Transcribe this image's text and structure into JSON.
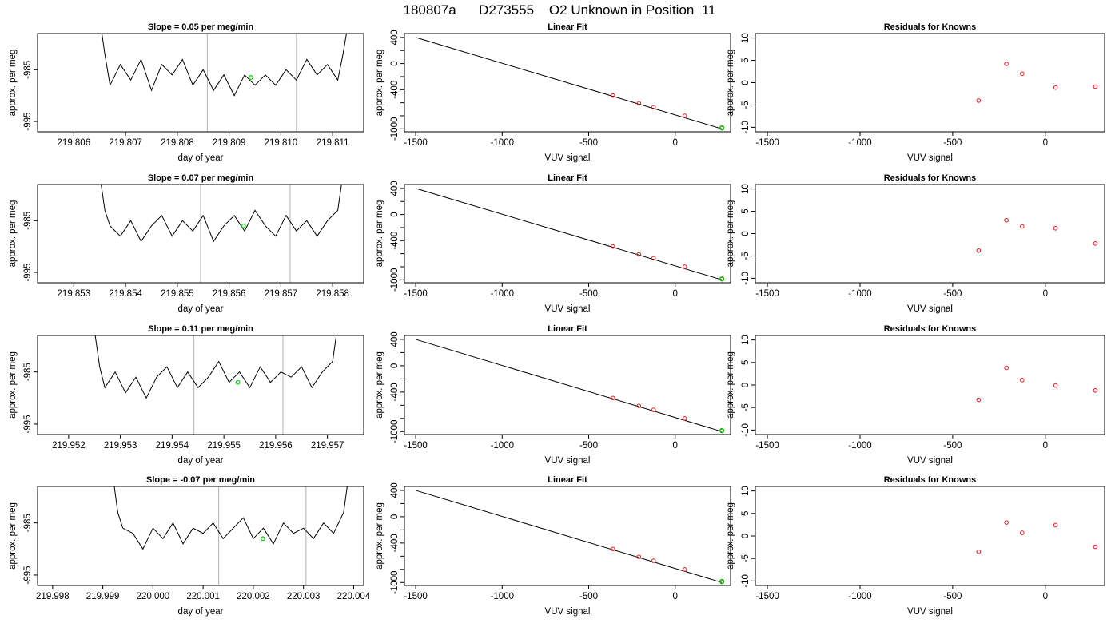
{
  "figure": {
    "title": "180807a      D273555    O2 Unknown in Position  11"
  },
  "common": {
    "ylabel": "approx. per meg",
    "time_xlabel": "day of year",
    "fit_xlabel": "VUV signal",
    "fit_title": "Linear Fit",
    "resid_title": "Residuals for Knowns",
    "colors": {
      "line": "#000000",
      "known_points": "#e41a1c",
      "unknown_point": "#00cc00",
      "vlines": "#bfbfbf"
    }
  },
  "chart_data": [
    {
      "type": "line",
      "panel": "time-series-1",
      "title": "Slope =  0.05  per meg/min",
      "xlabel": "day of year",
      "ylabel": "approx. per meg",
      "xlim": [
        219.8053,
        219.8116
      ],
      "ylim": [
        -997,
        -978
      ],
      "xticks": [
        "219.806",
        "219.807",
        "219.808",
        "219.809",
        "219.810",
        "219.811"
      ],
      "yticks": [
        "-985",
        "-995"
      ],
      "vlines": [
        219.80858,
        219.8103
      ],
      "series": [
        {
          "x": [
            219.8065,
            219.8066,
            219.8067,
            219.8069,
            219.8071,
            219.8073,
            219.8075,
            219.8077,
            219.8079,
            219.8081,
            219.8083,
            219.8085,
            219.8087,
            219.8089,
            219.8091,
            219.8093,
            219.8095,
            219.8097,
            219.8099,
            219.8101,
            219.8103,
            219.8105,
            219.8107,
            219.8109,
            219.8111,
            219.8112,
            219.8113
          ],
          "y": [
            -975,
            -982,
            -988,
            -984,
            -987,
            -983,
            -989,
            -984,
            -986,
            -983,
            -988,
            -985,
            -989,
            -986,
            -990,
            -986,
            -988,
            -986,
            -988,
            -985,
            -987,
            -983,
            -986,
            -984,
            -987,
            -982,
            -976
          ]
        }
      ],
      "unknown_marker": {
        "x": 219.80942,
        "y": -986.5
      }
    },
    {
      "type": "line",
      "panel": "time-series-2",
      "title": "Slope =  0.07  per meg/min",
      "xlabel": "day of year",
      "ylabel": "approx. per meg",
      "xlim": [
        219.8523,
        219.8586
      ],
      "ylim": [
        -997,
        -978
      ],
      "xticks": [
        "219.853",
        "219.854",
        "219.855",
        "219.856",
        "219.857",
        "219.858"
      ],
      "yticks": [
        "-985",
        "-995"
      ],
      "vlines": [
        219.85545,
        219.85718
      ],
      "series": [
        {
          "x": [
            219.8535,
            219.8536,
            219.8537,
            219.8539,
            219.8541,
            219.8543,
            219.8545,
            219.8547,
            219.8549,
            219.8551,
            219.8553,
            219.8555,
            219.8557,
            219.8559,
            219.8561,
            219.8563,
            219.8565,
            219.8567,
            219.8569,
            219.8571,
            219.8573,
            219.8575,
            219.8577,
            219.8579,
            219.8581,
            219.8582
          ],
          "y": [
            -976,
            -983,
            -986,
            -988,
            -985,
            -989,
            -986,
            -984,
            -988,
            -985,
            -987,
            -984,
            -989,
            -986,
            -984,
            -987,
            -983,
            -986,
            -988,
            -984,
            -987,
            -985,
            -988,
            -985,
            -983,
            -976
          ]
        }
      ],
      "unknown_marker": {
        "x": 219.85628,
        "y": -986.0
      }
    },
    {
      "type": "line",
      "panel": "time-series-3",
      "title": "Slope =  0.11  per meg/min",
      "xlabel": "day of year",
      "ylabel": "approx. per meg",
      "xlim": [
        219.9514,
        219.9577
      ],
      "ylim": [
        -997,
        -978
      ],
      "xticks": [
        "219.952",
        "219.953",
        "219.954",
        "219.955",
        "219.956",
        "219.957"
      ],
      "yticks": [
        "-985",
        "-995"
      ],
      "vlines": [
        219.95442,
        219.95614
      ],
      "series": [
        {
          "x": [
            219.9525,
            219.9526,
            219.9527,
            219.9529,
            219.9531,
            219.9533,
            219.9535,
            219.9537,
            219.9539,
            219.9541,
            219.9543,
            219.9545,
            219.9547,
            219.9549,
            219.9551,
            219.9553,
            219.9555,
            219.9557,
            219.9559,
            219.9561,
            219.9563,
            219.9565,
            219.9567,
            219.9569,
            219.9571,
            219.9572
          ],
          "y": [
            -977,
            -984,
            -988,
            -985,
            -989,
            -986,
            -990,
            -986,
            -984,
            -988,
            -985,
            -988,
            -986,
            -983,
            -987,
            -985,
            -988,
            -984,
            -987,
            -985,
            -986,
            -984,
            -988,
            -985,
            -983,
            -976
          ]
        }
      ],
      "unknown_marker": {
        "x": 219.95527,
        "y": -987.0
      }
    },
    {
      "type": "line",
      "panel": "time-series-4",
      "title": "Slope =  -0.07  per meg/min",
      "xlabel": "day of year",
      "ylabel": "approx. per meg",
      "xlim": [
        219.9977,
        220.0042
      ],
      "ylim": [
        -997,
        -978
      ],
      "xticks": [
        "219.998",
        "219.999",
        "220.000",
        "220.001",
        "220.002",
        "220.003",
        "220.004"
      ],
      "yticks": [
        "-985",
        "-995"
      ],
      "vlines": [
        220.00131,
        220.00305
      ],
      "series": [
        {
          "x": [
            219.9992,
            219.9993,
            219.9994,
            219.9996,
            219.9998,
            220.0,
            220.0002,
            220.0004,
            220.0006,
            220.0008,
            220.001,
            220.0012,
            220.0014,
            220.0016,
            220.0018,
            220.002,
            220.0022,
            220.0024,
            220.0026,
            220.0028,
            220.003,
            220.0032,
            220.0034,
            220.0036,
            220.0038,
            220.0039
          ],
          "y": [
            -976,
            -983,
            -986,
            -987,
            -990,
            -986,
            -988,
            -985,
            -989,
            -986,
            -987,
            -985,
            -988,
            -986,
            -984,
            -988,
            -986,
            -989,
            -985,
            -987,
            -986,
            -988,
            -985,
            -987,
            -983,
            -976
          ]
        }
      ],
      "unknown_marker": {
        "x": 220.00219,
        "y": -988.0
      }
    },
    {
      "type": "scatter",
      "panel": "linear-fit-1",
      "title": "Linear Fit",
      "xlabel": "VUV signal",
      "ylabel": "approx. per meg",
      "xlim": [
        -1565,
        320
      ],
      "ylim": [
        -1045,
        460
      ],
      "xticks": [
        "-1500",
        "-1000",
        "-500",
        "0"
      ],
      "yticks": [
        "400",
        "0",
        "-400",
        "-1000"
      ],
      "fit_line": {
        "x": [
          -1500,
          270
        ],
        "y": [
          400,
          -1000
        ]
      },
      "known_points": {
        "x": [
          -360,
          -210,
          -125,
          55,
          270
        ],
        "y": [
          -490,
          -610,
          -670,
          -800,
          -990
        ]
      },
      "unknown_point": {
        "x": 270,
        "y": -985
      }
    },
    {
      "type": "scatter",
      "panel": "linear-fit-2",
      "title": "Linear Fit",
      "xlabel": "VUV signal",
      "ylabel": "approx. per meg",
      "xlim": [
        -1565,
        320
      ],
      "ylim": [
        -1045,
        460
      ],
      "xticks": [
        "-1500",
        "-1000",
        "-500",
        "0"
      ],
      "yticks": [
        "400",
        "0",
        "-400",
        "-1000"
      ],
      "fit_line": {
        "x": [
          -1500,
          270
        ],
        "y": [
          400,
          -1000
        ]
      },
      "known_points": {
        "x": [
          -360,
          -210,
          -125,
          55,
          270
        ],
        "y": [
          -490,
          -610,
          -670,
          -800,
          -990
        ]
      },
      "unknown_point": {
        "x": 270,
        "y": -985
      }
    },
    {
      "type": "scatter",
      "panel": "linear-fit-3",
      "title": "Linear Fit",
      "xlabel": "VUV signal",
      "ylabel": "approx. per meg",
      "xlim": [
        -1565,
        320
      ],
      "ylim": [
        -1045,
        460
      ],
      "xticks": [
        "-1500",
        "-1000",
        "-500",
        "0"
      ],
      "yticks": [
        "400",
        "0",
        "-400",
        "-1000"
      ],
      "fit_line": {
        "x": [
          -1500,
          270
        ],
        "y": [
          400,
          -1000
        ]
      },
      "known_points": {
        "x": [
          -360,
          -210,
          -125,
          55,
          270
        ],
        "y": [
          -490,
          -610,
          -670,
          -800,
          -990
        ]
      },
      "unknown_point": {
        "x": 270,
        "y": -985
      }
    },
    {
      "type": "scatter",
      "panel": "linear-fit-4",
      "title": "Linear Fit",
      "xlabel": "VUV signal",
      "ylabel": "approx. per meg",
      "xlim": [
        -1565,
        320
      ],
      "ylim": [
        -1045,
        460
      ],
      "xticks": [
        "-1500",
        "-1000",
        "-500",
        "0"
      ],
      "yticks": [
        "400",
        "0",
        "-400",
        "-1000"
      ],
      "fit_line": {
        "x": [
          -1500,
          270
        ],
        "y": [
          400,
          -1000
        ]
      },
      "known_points": {
        "x": [
          -360,
          -210,
          -125,
          55,
          270
        ],
        "y": [
          -490,
          -610,
          -670,
          -800,
          -990
        ]
      },
      "unknown_point": {
        "x": 270,
        "y": -985
      }
    },
    {
      "type": "scatter",
      "panel": "residuals-1",
      "title": "Residuals for Knowns",
      "xlabel": "VUV signal",
      "ylabel": "approx. per meg",
      "xlim": [
        -1565,
        320
      ],
      "ylim": [
        -11,
        11
      ],
      "xticks": [
        "-1500",
        "-1000",
        "-500",
        "0"
      ],
      "yticks": [
        "10",
        "5",
        "0",
        "-5",
        "-10"
      ],
      "points": {
        "x": [
          -360,
          -210,
          -125,
          55,
          270
        ],
        "y": [
          -4.0,
          4.2,
          2.0,
          -1.1,
          -0.9
        ]
      }
    },
    {
      "type": "scatter",
      "panel": "residuals-2",
      "title": "Residuals for Knowns",
      "xlabel": "VUV signal",
      "ylabel": "approx. per meg",
      "xlim": [
        -1565,
        320
      ],
      "ylim": [
        -11,
        11
      ],
      "xticks": [
        "-1500",
        "-1000",
        "-500",
        "0"
      ],
      "yticks": [
        "10",
        "5",
        "0",
        "-5",
        "-10"
      ],
      "points": {
        "x": [
          -360,
          -210,
          -125,
          55,
          270
        ],
        "y": [
          -3.8,
          3.0,
          1.6,
          1.2,
          -2.2
        ]
      }
    },
    {
      "type": "scatter",
      "panel": "residuals-3",
      "title": "Residuals for Knowns",
      "xlabel": "VUV signal",
      "ylabel": "approx. per meg",
      "xlim": [
        -1565,
        320
      ],
      "ylim": [
        -11,
        11
      ],
      "xticks": [
        "-1500",
        "-1000",
        "-500",
        "0"
      ],
      "yticks": [
        "10",
        "5",
        "0",
        "-5",
        "-10"
      ],
      "points": {
        "x": [
          -360,
          -210,
          -125,
          55,
          270
        ],
        "y": [
          -3.3,
          3.8,
          1.1,
          -0.1,
          -1.2
        ]
      }
    },
    {
      "type": "scatter",
      "panel": "residuals-4",
      "title": "Residuals for Knowns",
      "xlabel": "VUV signal",
      "ylabel": "approx. per meg",
      "xlim": [
        -1565,
        320
      ],
      "ylim": [
        -11,
        11
      ],
      "xticks": [
        "-1500",
        "-1000",
        "-500",
        "0"
      ],
      "yticks": [
        "10",
        "5",
        "0",
        "-5",
        "-10"
      ],
      "points": {
        "x": [
          -360,
          -210,
          -125,
          55,
          270
        ],
        "y": [
          -3.5,
          3.0,
          0.7,
          2.4,
          -2.4
        ]
      }
    }
  ]
}
